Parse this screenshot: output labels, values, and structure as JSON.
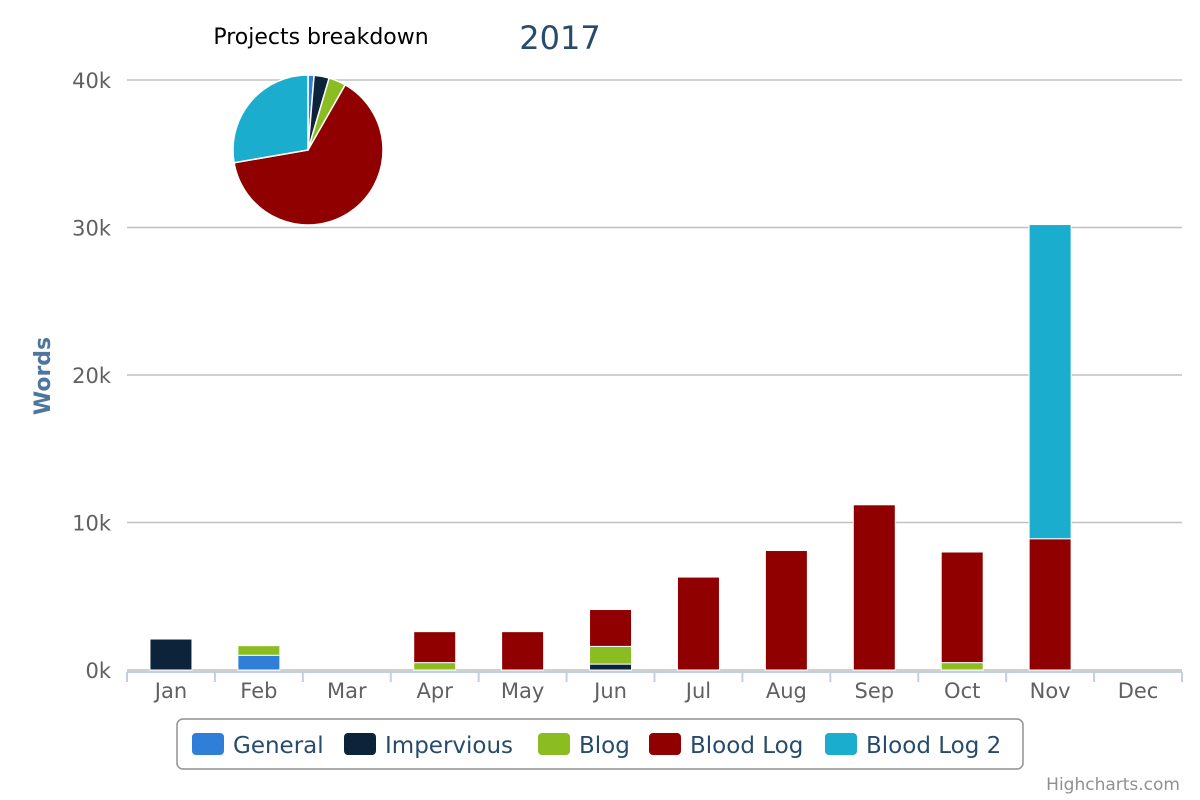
{
  "chart_data": {
    "type": "bar",
    "stacked": true,
    "title": "2017",
    "ylabel": "Words",
    "ylim": [
      0,
      40000
    ],
    "yticks": [
      "0k",
      "10k",
      "20k",
      "30k",
      "40k"
    ],
    "grid": true,
    "categories": [
      "Jan",
      "Feb",
      "Mar",
      "Apr",
      "May",
      "Jun",
      "Jul",
      "Aug",
      "Sep",
      "Oct",
      "Nov",
      "Dec"
    ],
    "series": [
      {
        "name": "General",
        "color": "#2f7ed8",
        "values": [
          0,
          1000,
          0,
          0,
          0,
          0,
          0,
          0,
          0,
          0,
          0,
          0
        ]
      },
      {
        "name": "Impervious",
        "color": "#0d233a",
        "values": [
          2100,
          0,
          0,
          0,
          0,
          400,
          0,
          0,
          0,
          0,
          0,
          0
        ]
      },
      {
        "name": "Blog",
        "color": "#8bbc21",
        "values": [
          0,
          650,
          0,
          500,
          0,
          1200,
          0,
          0,
          0,
          500,
          0,
          0
        ]
      },
      {
        "name": "Blood Log",
        "color": "#910000",
        "values": [
          0,
          0,
          0,
          2100,
          2600,
          2500,
          6300,
          8100,
          11200,
          7500,
          8900,
          0
        ]
      },
      {
        "name": "Blood Log 2",
        "color": "#1aadce",
        "values": [
          0,
          0,
          0,
          0,
          0,
          0,
          0,
          0,
          0,
          0,
          21300,
          0
        ]
      }
    ],
    "legend_position": "bottom-center",
    "pie": {
      "title": "Projects breakdown",
      "slices": [
        {
          "name": "General",
          "color": "#2f7ed8",
          "value": 1000
        },
        {
          "name": "Impervious",
          "color": "#0d233a",
          "value": 2500
        },
        {
          "name": "Blog",
          "color": "#8bbc21",
          "value": 2850
        },
        {
          "name": "Blood Log",
          "color": "#910000",
          "value": 49200
        },
        {
          "name": "Blood Log 2",
          "color": "#1aadce",
          "value": 21300
        }
      ]
    }
  },
  "credits": "Highcharts.com"
}
